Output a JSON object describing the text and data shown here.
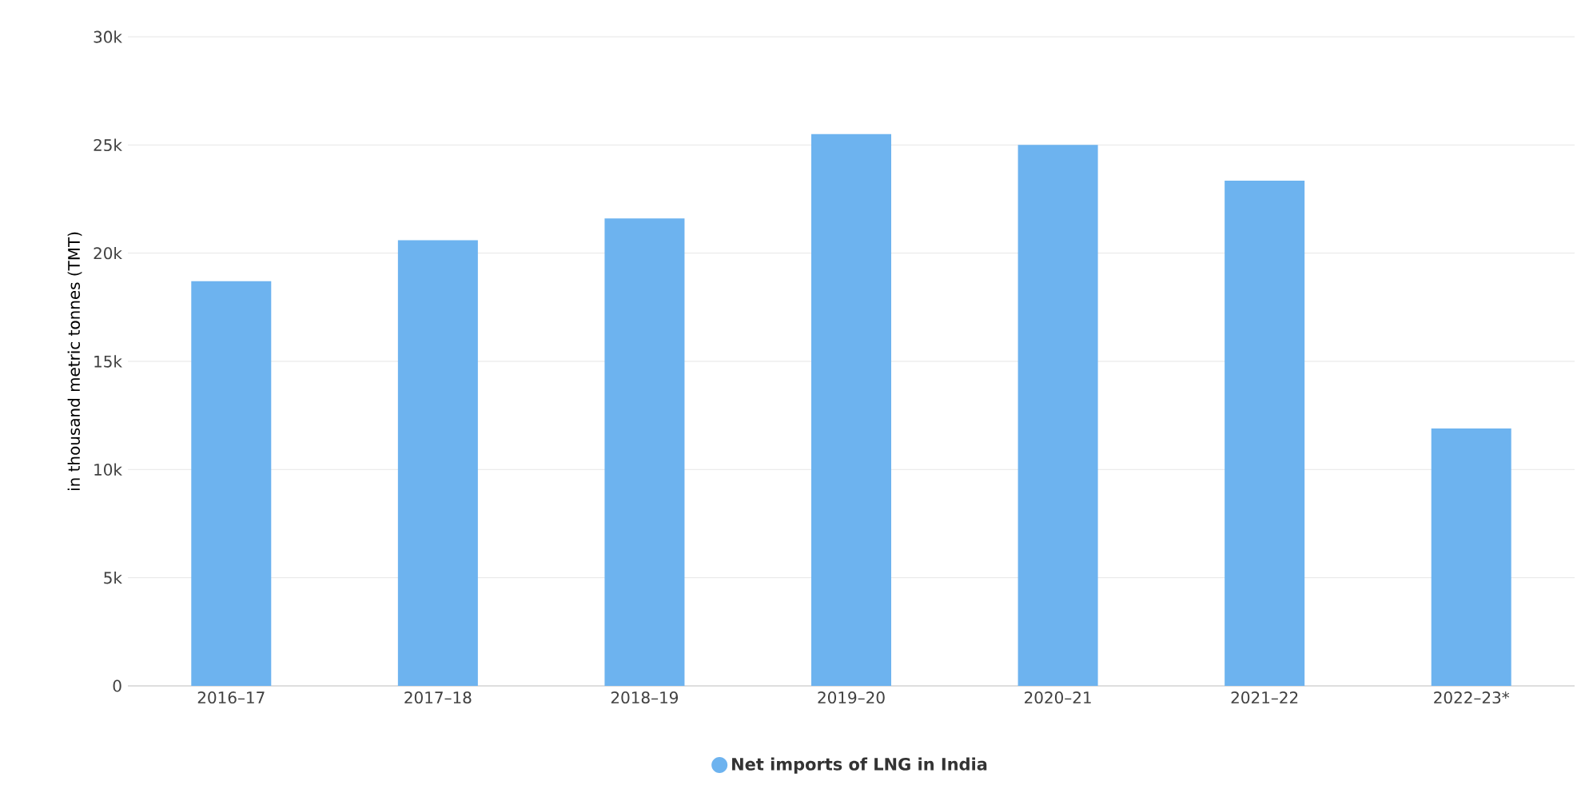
{
  "chart_data": {
    "type": "bar",
    "ylabel": "in thousand metric tonnes (TMT)",
    "categories": [
      "2016–17",
      "2017–18",
      "2018–19",
      "2019–20",
      "2020–21",
      "2021–22",
      "2022–23*"
    ],
    "series": [
      {
        "name": "Net imports of LNG in India",
        "color": "#6db3ef",
        "values": [
          18700,
          20600,
          21600,
          25500,
          25000,
          23350,
          11900
        ]
      }
    ],
    "ylim": [
      0,
      30000
    ],
    "yticks": [
      {
        "value": 0,
        "label": "0"
      },
      {
        "value": 5000,
        "label": "5k"
      },
      {
        "value": 10000,
        "label": "10k"
      },
      {
        "value": 15000,
        "label": "15k"
      },
      {
        "value": 20000,
        "label": "20k"
      },
      {
        "value": 25000,
        "label": "25k"
      },
      {
        "value": 30000,
        "label": "30k"
      }
    ],
    "grid": "y",
    "legend": "bottom"
  }
}
